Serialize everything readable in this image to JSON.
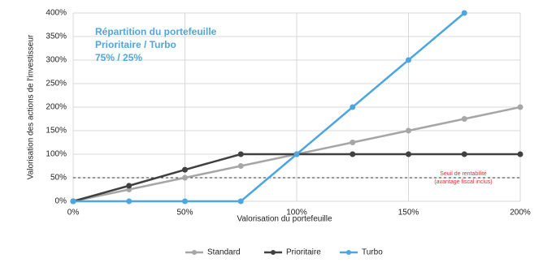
{
  "chart_data": {
    "type": "line",
    "annotation": [
      "Répartition du portefeuille",
      "Prioritaire / Turbo",
      "75% / 25%"
    ],
    "xlabel": "Valorisation du portefeuille",
    "ylabel": "Valorisation des actions de l'investisseur",
    "x": [
      0,
      25,
      50,
      75,
      100,
      125,
      150,
      175,
      200
    ],
    "series": [
      {
        "name": "Standard",
        "color": "#a6a6a6",
        "values": [
          0,
          25,
          50,
          75,
          100,
          125,
          150,
          175,
          200
        ]
      },
      {
        "name": "Prioritaire",
        "color": "#404040",
        "values": [
          0,
          33,
          67,
          100,
          100,
          100,
          100,
          100,
          100
        ]
      },
      {
        "name": "Turbo",
        "color": "#4da6e0",
        "values": [
          0,
          0,
          0,
          0,
          100,
          200,
          300,
          400,
          null
        ]
      }
    ],
    "reference_line": {
      "value": 50,
      "label": "Seuil de rentabilité",
      "sublabel": "(avantage fiscal inclus)",
      "color": "#e03030"
    },
    "xlim": [
      0,
      200
    ],
    "xticks": [
      {
        "value": 0,
        "label": "0%"
      },
      {
        "value": 50,
        "label": "50%"
      },
      {
        "value": 100,
        "label": "100%"
      },
      {
        "value": 150,
        "label": "150%"
      },
      {
        "value": 200,
        "label": "200%"
      }
    ],
    "ylim": [
      0,
      400
    ],
    "yticks": [
      {
        "value": 0,
        "label": "0%"
      },
      {
        "value": 50,
        "label": "50%"
      },
      {
        "value": 100,
        "label": "100%"
      },
      {
        "value": 150,
        "label": "150%"
      },
      {
        "value": 200,
        "label": "200%"
      },
      {
        "value": 250,
        "label": "250%"
      },
      {
        "value": 300,
        "label": "300%"
      },
      {
        "value": 350,
        "label": "350%"
      },
      {
        "value": 400,
        "label": "400%"
      }
    ],
    "grid": true,
    "legend": "bottom"
  }
}
